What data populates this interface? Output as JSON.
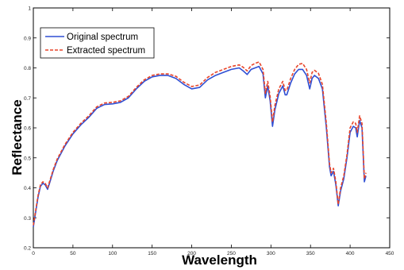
{
  "chart_data": {
    "type": "line",
    "title": "",
    "xlabel": "Wavelength",
    "ylabel": "Reflectance",
    "xlim": [
      0,
      450
    ],
    "ylim": [
      0.2,
      1
    ],
    "xticks": [
      0,
      50,
      100,
      150,
      200,
      250,
      300,
      350,
      400,
      450
    ],
    "yticks": [
      0.2,
      0.3,
      0.4,
      0.5,
      0.6,
      0.7,
      0.8,
      0.9,
      1
    ],
    "ytick_labels": [
      "0.2",
      "0.3",
      "0.4",
      "0.5",
      "0.6",
      "0.7",
      "0.8",
      "0.9",
      "1"
    ],
    "grid": false,
    "legend": "top-left",
    "series": [
      {
        "name": "Original spectrum",
        "color": "#2f4fd4",
        "style": "solid",
        "points": [
          [
            0,
            0.27
          ],
          [
            3,
            0.32
          ],
          [
            6,
            0.37
          ],
          [
            9,
            0.405
          ],
          [
            12,
            0.415
          ],
          [
            15,
            0.41
          ],
          [
            18,
            0.395
          ],
          [
            21,
            0.42
          ],
          [
            25,
            0.455
          ],
          [
            30,
            0.49
          ],
          [
            40,
            0.54
          ],
          [
            50,
            0.58
          ],
          [
            60,
            0.61
          ],
          [
            70,
            0.635
          ],
          [
            80,
            0.665
          ],
          [
            90,
            0.678
          ],
          [
            100,
            0.68
          ],
          [
            110,
            0.685
          ],
          [
            120,
            0.7
          ],
          [
            130,
            0.73
          ],
          [
            140,
            0.755
          ],
          [
            150,
            0.77
          ],
          [
            160,
            0.775
          ],
          [
            170,
            0.775
          ],
          [
            180,
            0.765
          ],
          [
            190,
            0.745
          ],
          [
            200,
            0.73
          ],
          [
            210,
            0.735
          ],
          [
            220,
            0.76
          ],
          [
            230,
            0.775
          ],
          [
            240,
            0.785
          ],
          [
            250,
            0.795
          ],
          [
            260,
            0.8
          ],
          [
            265,
            0.79
          ],
          [
            270,
            0.778
          ],
          [
            275,
            0.795
          ],
          [
            280,
            0.8
          ],
          [
            285,
            0.805
          ],
          [
            290,
            0.78
          ],
          [
            293,
            0.7
          ],
          [
            296,
            0.74
          ],
          [
            299,
            0.69
          ],
          [
            302,
            0.605
          ],
          [
            305,
            0.66
          ],
          [
            310,
            0.715
          ],
          [
            315,
            0.74
          ],
          [
            318,
            0.71
          ],
          [
            320,
            0.71
          ],
          [
            325,
            0.75
          ],
          [
            330,
            0.78
          ],
          [
            335,
            0.795
          ],
          [
            340,
            0.795
          ],
          [
            345,
            0.775
          ],
          [
            349,
            0.73
          ],
          [
            352,
            0.765
          ],
          [
            355,
            0.775
          ],
          [
            360,
            0.765
          ],
          [
            365,
            0.73
          ],
          [
            370,
            0.6
          ],
          [
            374,
            0.47
          ],
          [
            376,
            0.44
          ],
          [
            379,
            0.455
          ],
          [
            382,
            0.41
          ],
          [
            385,
            0.34
          ],
          [
            388,
            0.39
          ],
          [
            392,
            0.43
          ],
          [
            396,
            0.5
          ],
          [
            400,
            0.585
          ],
          [
            404,
            0.605
          ],
          [
            407,
            0.6
          ],
          [
            409,
            0.57
          ],
          [
            412,
            0.625
          ],
          [
            415,
            0.6
          ],
          [
            418,
            0.42
          ],
          [
            420,
            0.44
          ]
        ]
      },
      {
        "name": "Extracted spectrum",
        "color": "#e8452a",
        "style": "dashed",
        "points": [
          [
            0,
            0.275
          ],
          [
            3,
            0.325
          ],
          [
            6,
            0.375
          ],
          [
            9,
            0.41
          ],
          [
            12,
            0.42
          ],
          [
            15,
            0.415
          ],
          [
            18,
            0.4
          ],
          [
            21,
            0.425
          ],
          [
            25,
            0.46
          ],
          [
            30,
            0.495
          ],
          [
            40,
            0.545
          ],
          [
            50,
            0.585
          ],
          [
            60,
            0.615
          ],
          [
            70,
            0.64
          ],
          [
            80,
            0.67
          ],
          [
            90,
            0.683
          ],
          [
            100,
            0.685
          ],
          [
            110,
            0.69
          ],
          [
            120,
            0.705
          ],
          [
            130,
            0.735
          ],
          [
            140,
            0.76
          ],
          [
            150,
            0.775
          ],
          [
            160,
            0.78
          ],
          [
            170,
            0.78
          ],
          [
            180,
            0.772
          ],
          [
            190,
            0.752
          ],
          [
            200,
            0.738
          ],
          [
            210,
            0.743
          ],
          [
            220,
            0.768
          ],
          [
            230,
            0.785
          ],
          [
            240,
            0.795
          ],
          [
            250,
            0.805
          ],
          [
            260,
            0.81
          ],
          [
            265,
            0.802
          ],
          [
            270,
            0.79
          ],
          [
            275,
            0.808
          ],
          [
            280,
            0.815
          ],
          [
            285,
            0.82
          ],
          [
            290,
            0.795
          ],
          [
            293,
            0.715
          ],
          [
            296,
            0.755
          ],
          [
            299,
            0.705
          ],
          [
            302,
            0.62
          ],
          [
            305,
            0.675
          ],
          [
            310,
            0.73
          ],
          [
            315,
            0.755
          ],
          [
            318,
            0.725
          ],
          [
            320,
            0.725
          ],
          [
            325,
            0.765
          ],
          [
            330,
            0.795
          ],
          [
            335,
            0.812
          ],
          [
            340,
            0.815
          ],
          [
            345,
            0.795
          ],
          [
            349,
            0.75
          ],
          [
            352,
            0.785
          ],
          [
            355,
            0.792
          ],
          [
            360,
            0.782
          ],
          [
            365,
            0.745
          ],
          [
            370,
            0.615
          ],
          [
            374,
            0.48
          ],
          [
            376,
            0.45
          ],
          [
            379,
            0.465
          ],
          [
            382,
            0.42
          ],
          [
            385,
            0.345
          ],
          [
            388,
            0.4
          ],
          [
            392,
            0.44
          ],
          [
            396,
            0.51
          ],
          [
            400,
            0.6
          ],
          [
            404,
            0.62
          ],
          [
            407,
            0.615
          ],
          [
            409,
            0.585
          ],
          [
            412,
            0.64
          ],
          [
            415,
            0.615
          ],
          [
            418,
            0.43
          ],
          [
            420,
            0.45
          ]
        ]
      }
    ]
  }
}
